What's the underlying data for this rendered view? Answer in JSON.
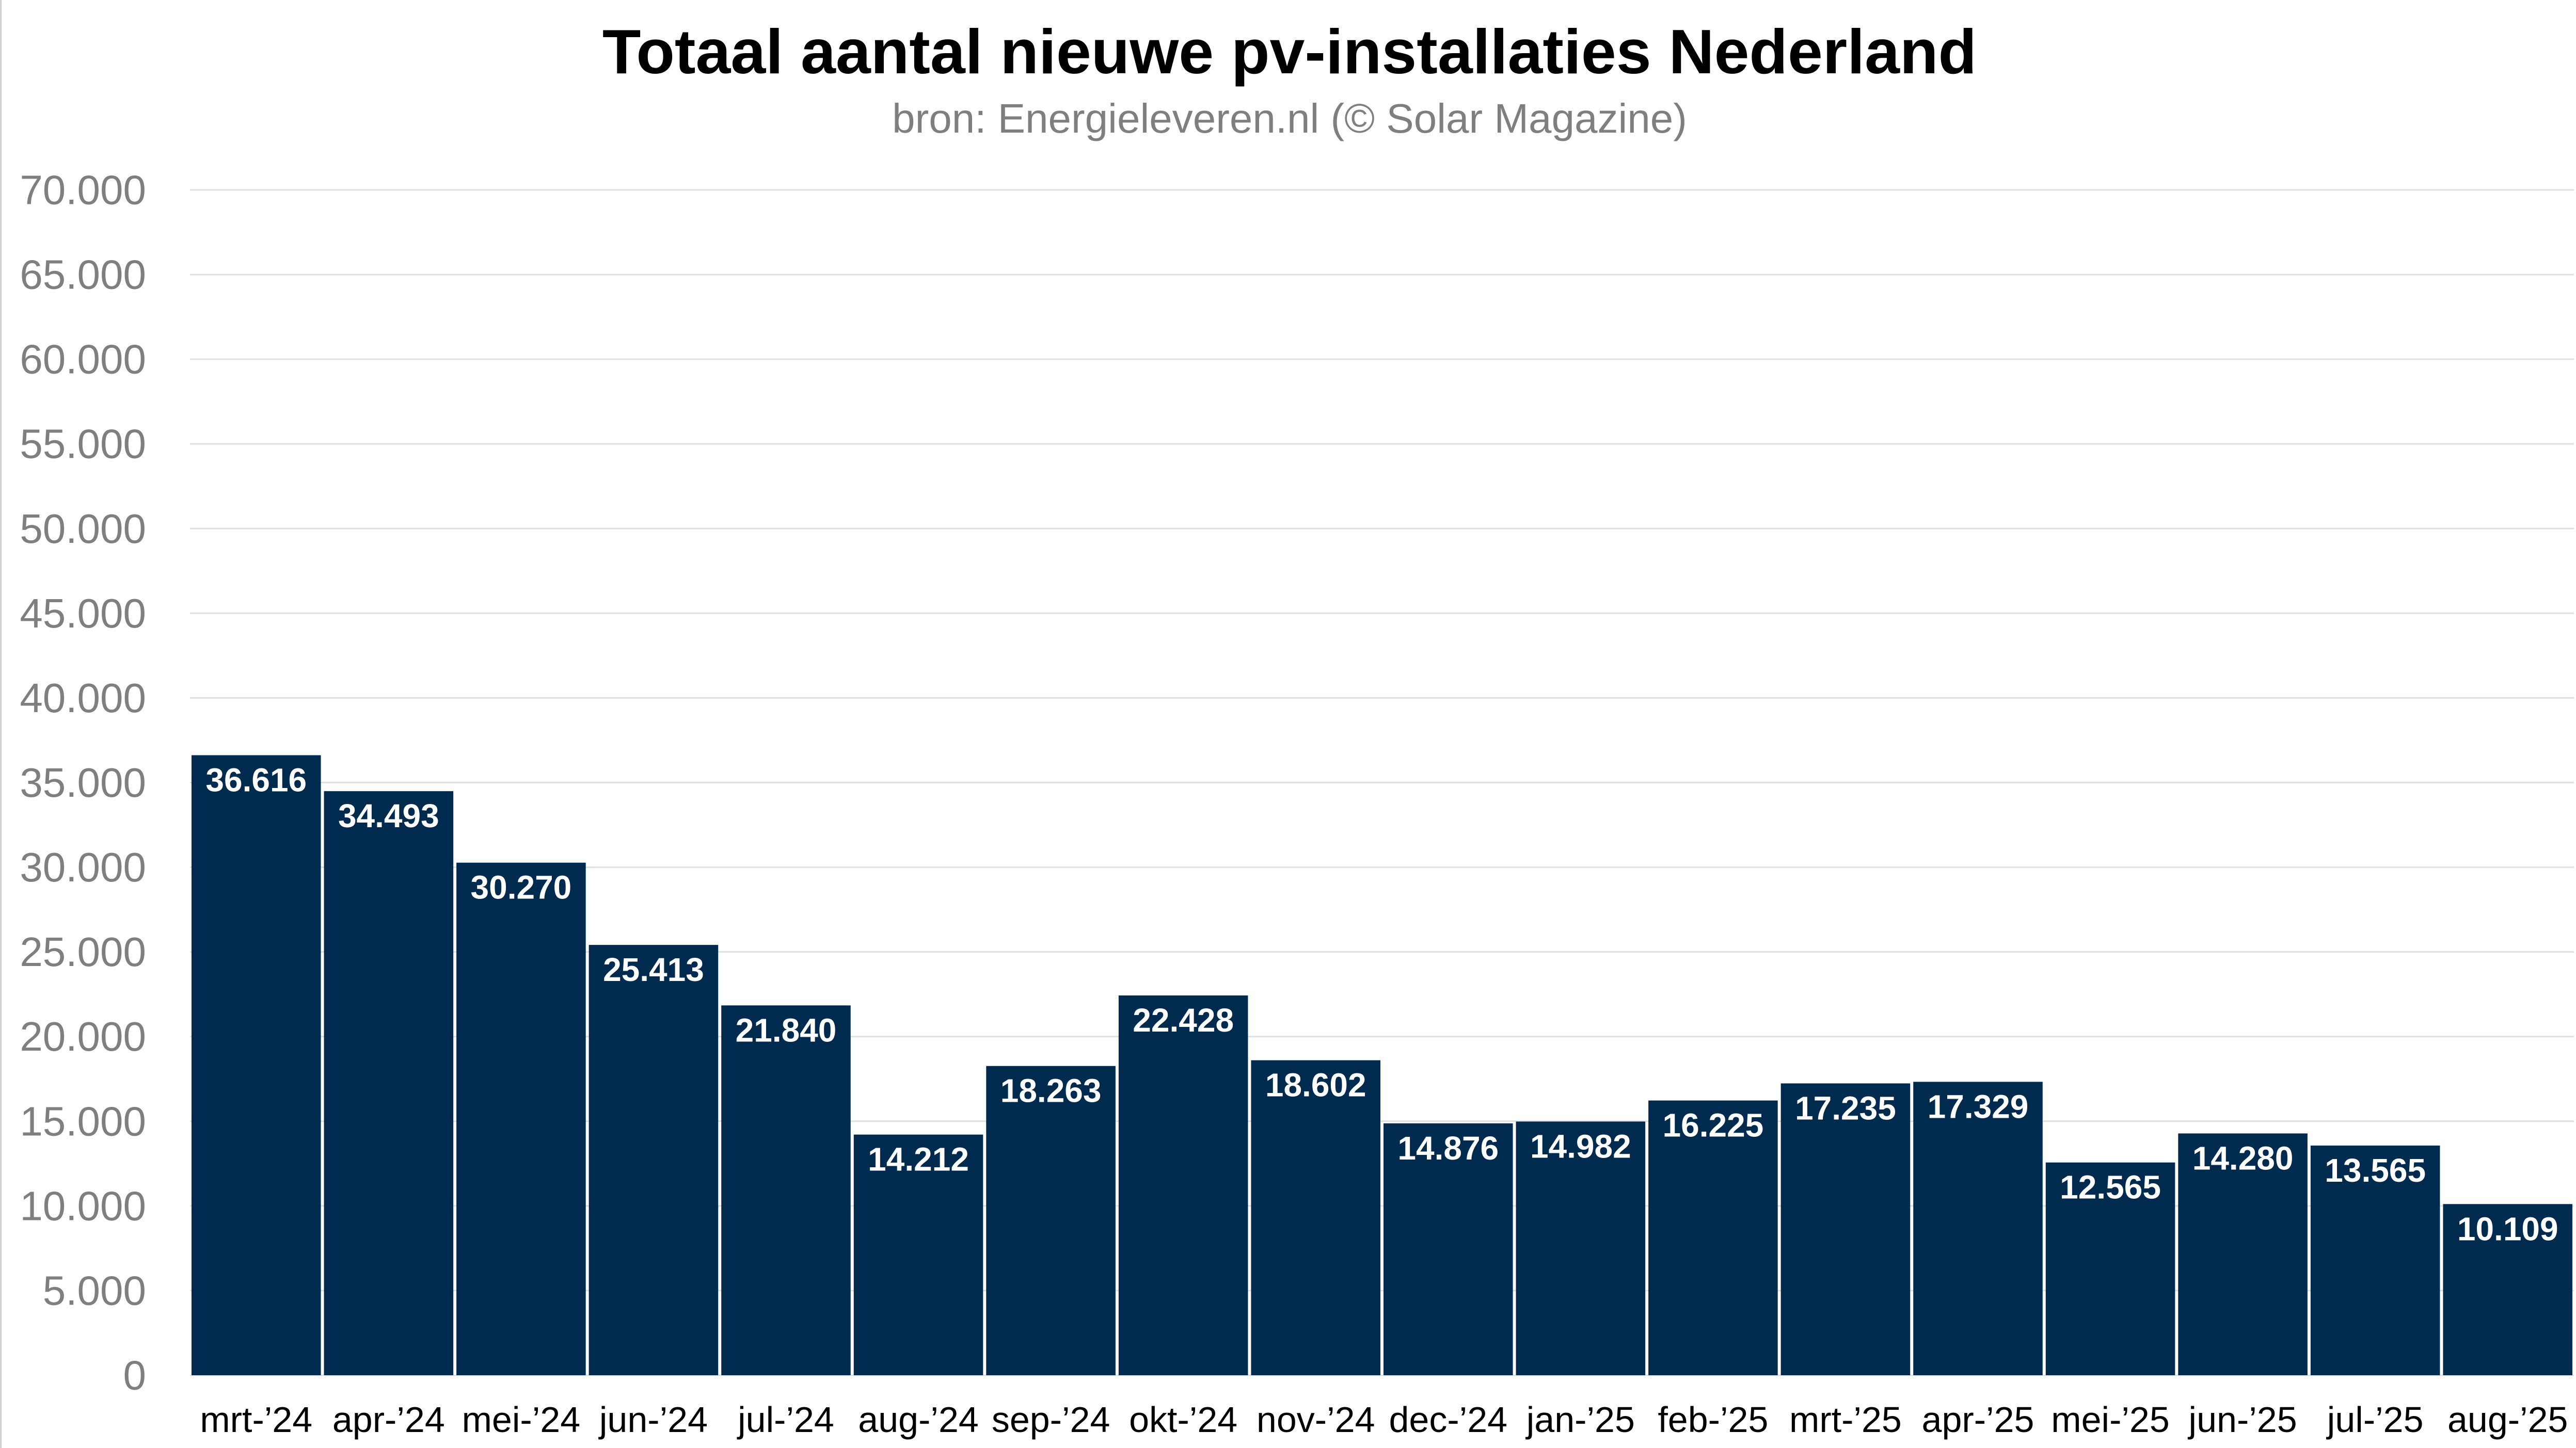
{
  "chart_data": {
    "type": "bar",
    "title": "Totaal aantal nieuwe pv-installaties Nederland",
    "subtitle": "bron: Energieleveren.nl (© Solar Magazine)",
    "categories": [
      "mrt-’24",
      "apr-’24",
      "mei-’24",
      "jun-’24",
      "jul-’24",
      "aug-’24",
      "sep-’24",
      "okt-’24",
      "nov-’24",
      "dec-’24",
      "jan-’25",
      "feb-’25",
      "mrt-’25",
      "apr-’25",
      "mei-’25",
      "jun-’25",
      "jul-’25",
      "aug-’25"
    ],
    "values": [
      36616,
      34493,
      30270,
      25413,
      21840,
      14212,
      18263,
      22428,
      18602,
      14876,
      14982,
      16225,
      17235,
      17329,
      12565,
      14280,
      13565,
      10109
    ],
    "value_labels": [
      "36.616",
      "34.493",
      "30.270",
      "25.413",
      "21.840",
      "14.212",
      "18.263",
      "22.428",
      "18.602",
      "14.876",
      "14.982",
      "16.225",
      "17.235",
      "17.329",
      "12.565",
      "14.280",
      "13.565",
      "10.109"
    ],
    "y_ticks": [
      0,
      5000,
      10000,
      15000,
      20000,
      25000,
      30000,
      35000,
      40000,
      45000,
      50000,
      55000,
      60000,
      65000,
      70000
    ],
    "y_tick_labels": [
      "0",
      "5.000",
      "10.000",
      "15.000",
      "20.000",
      "25.000",
      "30.000",
      "35.000",
      "40.000",
      "45.000",
      "50.000",
      "55.000",
      "60.000",
      "65.000",
      "70.000"
    ],
    "ylim": [
      0,
      70000
    ],
    "xlabel": "",
    "ylabel": "",
    "grid": true,
    "legend": "none",
    "bar_color": "#002a4e",
    "grid_color": "#e0e0e0",
    "tick_color": "#7f7f7f",
    "data_label_color": "#ffffff"
  }
}
